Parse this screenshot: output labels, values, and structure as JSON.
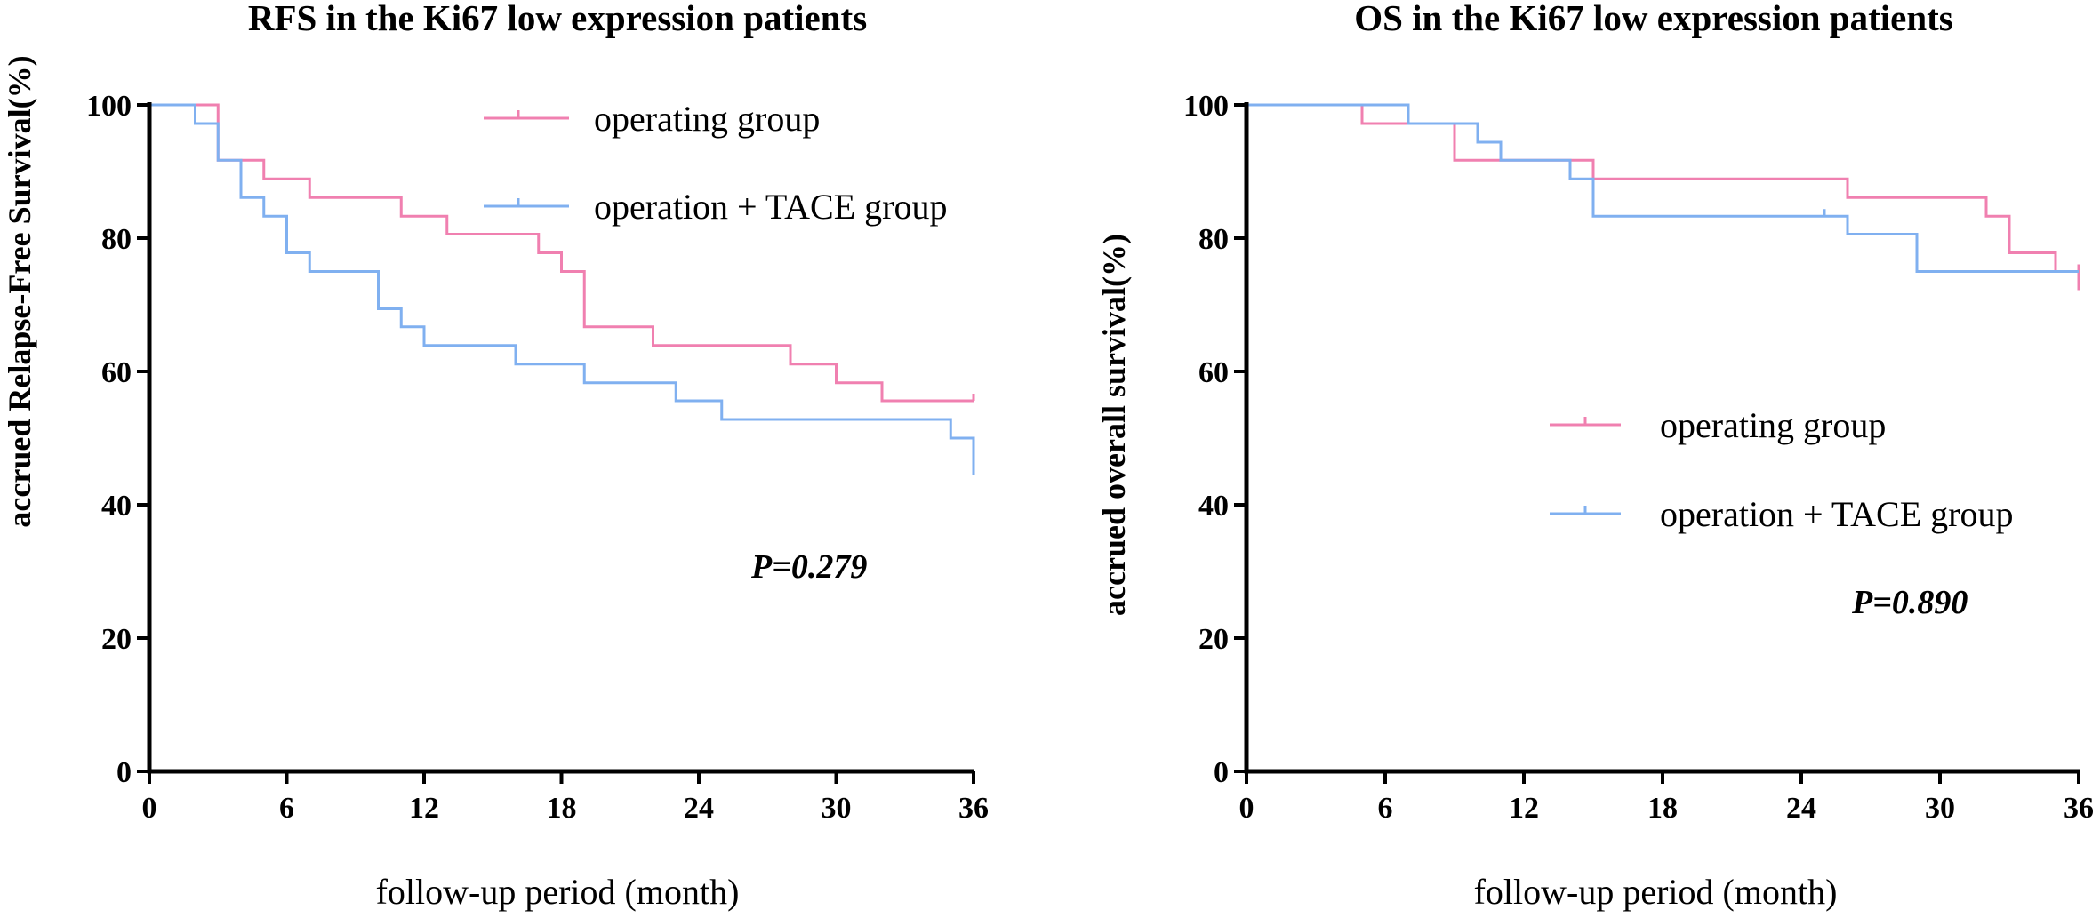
{
  "chart_data": [
    {
      "type": "line",
      "subtype": "kaplan-meier",
      "title": "RFS in the Ki67 low expression patients",
      "xlabel": "follow-up period (month)",
      "ylabel": "accrued Relapse-Free Survival(%)",
      "xlim": [
        0,
        36
      ],
      "ylim": [
        0,
        100
      ],
      "xticks": [
        0,
        6,
        12,
        18,
        24,
        30,
        36
      ],
      "yticks": [
        0,
        20,
        40,
        60,
        80,
        100
      ],
      "legend_position": "top-right",
      "annotation": "P=0.279",
      "series": [
        {
          "name": "operating group",
          "color": "#F080B0",
          "steps": [
            [
              0,
              100
            ],
            [
              3,
              91.7
            ],
            [
              5,
              88.9
            ],
            [
              7,
              86.1
            ],
            [
              11,
              83.3
            ],
            [
              13,
              80.6
            ],
            [
              17,
              77.8
            ],
            [
              18,
              75
            ],
            [
              19,
              66.7
            ],
            [
              22,
              63.9
            ],
            [
              28,
              61.1
            ],
            [
              30,
              58.3
            ],
            [
              32,
              55.6
            ],
            [
              36,
              55.6
            ]
          ],
          "censors": [
            [
              36,
              55.6
            ]
          ]
        },
        {
          "name": "operation + TACE group",
          "color": "#80B0F0",
          "steps": [
            [
              0,
              100
            ],
            [
              2,
              97.2
            ],
            [
              3,
              91.7
            ],
            [
              4,
              86.1
            ],
            [
              5,
              83.3
            ],
            [
              6,
              77.8
            ],
            [
              7,
              75
            ],
            [
              10,
              69.4
            ],
            [
              11,
              66.7
            ],
            [
              12,
              63.9
            ],
            [
              16,
              61.1
            ],
            [
              19,
              58.3
            ],
            [
              23,
              55.6
            ],
            [
              25,
              52.8
            ],
            [
              35,
              50
            ],
            [
              36,
              44.4
            ]
          ],
          "censors": []
        }
      ]
    },
    {
      "type": "line",
      "subtype": "kaplan-meier",
      "title": "OS in the Ki67 low expression patients",
      "xlabel": "follow-up period (month)",
      "ylabel": "accrued overall survival(%)",
      "xlim": [
        0,
        36
      ],
      "ylim": [
        0,
        100
      ],
      "xticks": [
        0,
        6,
        12,
        18,
        24,
        30,
        36
      ],
      "yticks": [
        0,
        20,
        40,
        60,
        80,
        100
      ],
      "legend_position": "center-right",
      "annotation": "P=0.890",
      "series": [
        {
          "name": "operating group",
          "color": "#F080B0",
          "steps": [
            [
              0,
              100
            ],
            [
              5,
              97.2
            ],
            [
              9,
              91.7
            ],
            [
              15,
              88.9
            ],
            [
              26,
              86.1
            ],
            [
              32,
              83.3
            ],
            [
              33,
              77.8
            ],
            [
              35,
              75
            ],
            [
              36,
              72.2
            ]
          ],
          "censors": [
            [
              36,
              75
            ]
          ]
        },
        {
          "name": "operation + TACE group",
          "color": "#80B0F0",
          "steps": [
            [
              0,
              100
            ],
            [
              7,
              97.2
            ],
            [
              10,
              94.4
            ],
            [
              11,
              91.7
            ],
            [
              14,
              88.9
            ],
            [
              15,
              83.3
            ],
            [
              26,
              80.6
            ],
            [
              29,
              75
            ],
            [
              36,
              75
            ]
          ],
          "censors": [
            [
              25,
              83.3
            ]
          ]
        }
      ]
    }
  ]
}
